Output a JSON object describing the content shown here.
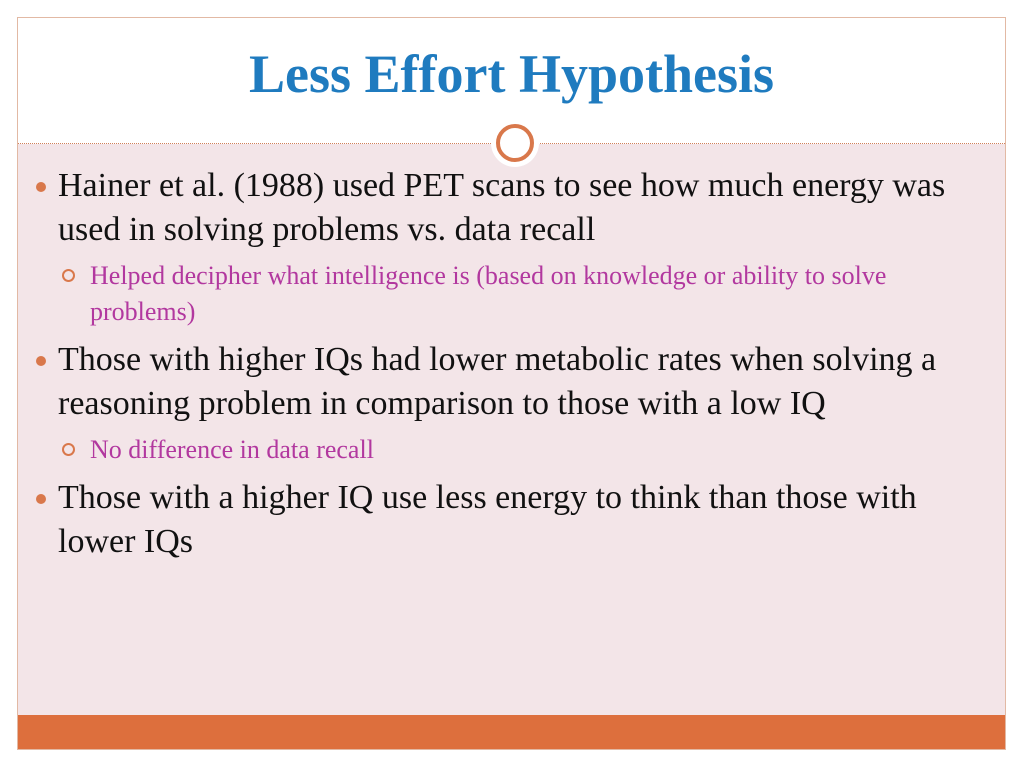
{
  "slide": {
    "title": "Less Effort Hypothesis",
    "bullets": [
      {
        "text": "Hainer et al. (1988) used PET scans to see how much energy was used in solving problems vs. data recall",
        "sub": [
          "Helped decipher what intelligence is (based on knowledge or ability to solve problems)"
        ]
      },
      {
        "text": "Those with higher IQs had lower metabolic rates when solving a reasoning problem in comparison to those with a low IQ",
        "sub": [
          "No difference in data recall"
        ]
      },
      {
        "text": "Those with a higher IQ use less energy to think than those with lower IQs",
        "sub": []
      }
    ]
  },
  "colors": {
    "title": "#1f7bbf",
    "accent": "#dd6f3d",
    "content_bg": "#f3e5e8",
    "sub_text": "#b2389f",
    "body_text": "#111111"
  }
}
